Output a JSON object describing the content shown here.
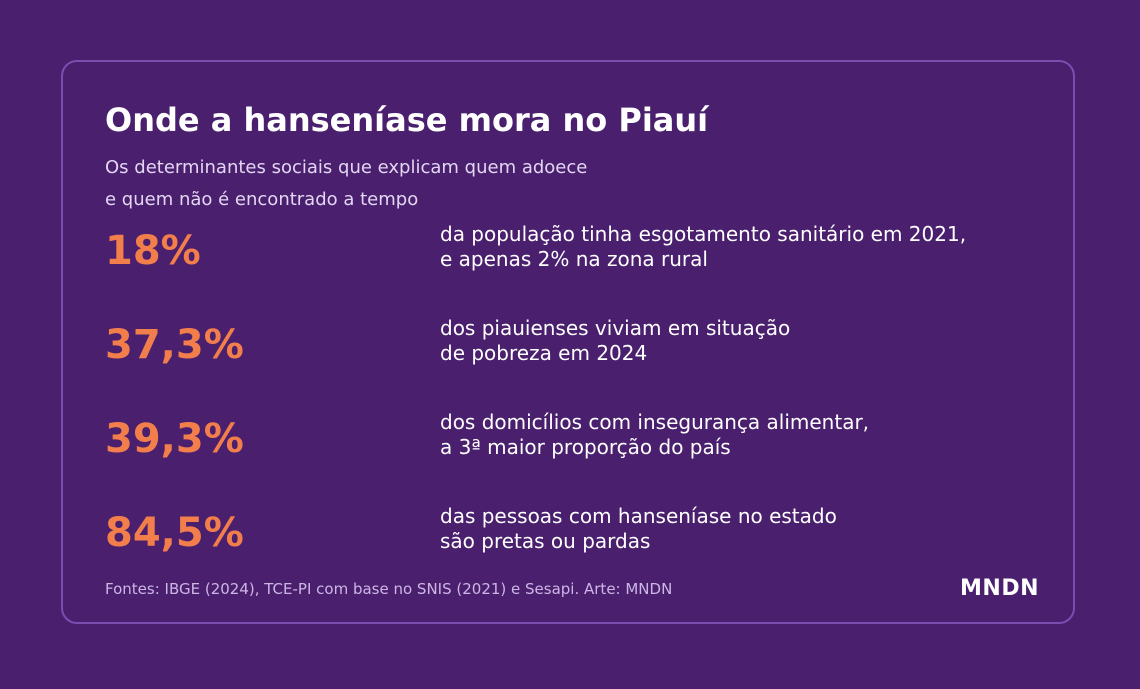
{
  "title": "Onde a hanseníase mora no Piauí",
  "subtitle": {
    "line1": "Os determinantes sociais que explicam quem adoece",
    "line2": "e quem não é encontrado a tempo"
  },
  "stats": [
    {
      "value": "18%",
      "line1": "da população tinha esgotamento sanitário em 2021,",
      "line2": "e apenas 2% na zona rural"
    },
    {
      "value": "37,3%",
      "line1": "dos piauienses viviam em situação",
      "line2": "de pobreza em 2024"
    },
    {
      "value": "39,3%",
      "line1": "dos domicílios com insegurança alimentar,",
      "line2": "a 3ª maior proporção do país"
    },
    {
      "value": "84,5%",
      "line1": "das pessoas com hanseníase no estado",
      "line2": "são pretas ou pardas"
    }
  ],
  "footer": {
    "source": "Fontes: IBGE (2024), TCE-PI com base no SNIS (2021) e Sesapi. Arte: MNDN",
    "logo": "MNDN"
  },
  "colors": {
    "background": "#4a206e",
    "card_border": "#7c4caf",
    "accent": "#f27e4c",
    "text": "#ffffff",
    "muted_text": "#cdb6e6"
  }
}
